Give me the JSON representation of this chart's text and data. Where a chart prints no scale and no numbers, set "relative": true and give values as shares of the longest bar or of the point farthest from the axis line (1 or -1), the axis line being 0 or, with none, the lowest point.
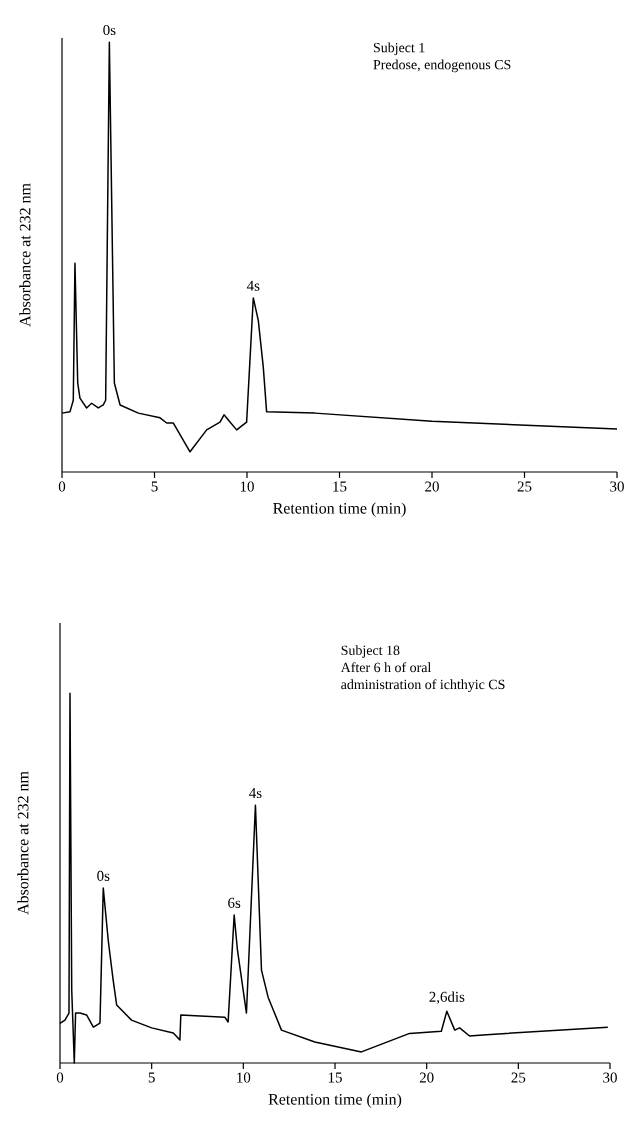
{
  "chart_data": [
    {
      "type": "line",
      "relative": true,
      "color": "#000000",
      "xlim": [
        0,
        30
      ],
      "xticks": [
        0,
        5,
        10,
        15,
        20,
        25,
        30
      ],
      "xlabel": "Retention time (min)",
      "ylabel": "Absorbance at 232 nm",
      "x": [
        0,
        0.43,
        0.61,
        0.7,
        0.85,
        0.97,
        1.33,
        1.6,
        1.96,
        2.23,
        2.36,
        2.56,
        2.83,
        3.14,
        4.13,
        5.3,
        5.66,
        6.02,
        6.92,
        7.82,
        8.54,
        8.76,
        8.99,
        9.44,
        9.98,
        10.34,
        10.61,
        10.88,
        11.06,
        13.68,
        20,
        30
      ],
      "values": [
        0.137,
        0.14,
        0.167,
        0.486,
        0.207,
        0.172,
        0.149,
        0.16,
        0.149,
        0.156,
        0.167,
        1.0,
        0.207,
        0.156,
        0.137,
        0.126,
        0.114,
        0.114,
        0.047,
        0.098,
        0.116,
        0.133,
        0.121,
        0.098,
        0.116,
        0.405,
        0.353,
        0.244,
        0.14,
        0.137,
        0.118,
        0.1
      ],
      "annotations": [
        "Subject 1",
        "Predose, endogenous CS",
        {
          "text": "0s",
          "x": 2.56,
          "y": 1.0
        },
        {
          "text": "4s",
          "x": 10.34,
          "y": 0.405
        }
      ]
    },
    {
      "type": "line",
      "relative": true,
      "color": "#000000",
      "xlim": [
        0,
        30
      ],
      "xticks": [
        0,
        5,
        10,
        15,
        20,
        25,
        30
      ],
      "xlabel": "Retention time (min)",
      "ylabel": "Absorbance at 232 nm",
      "x": [
        0,
        0.27,
        0.49,
        0.545,
        0.64,
        0.78,
        0.85,
        1.09,
        1.45,
        1.82,
        2.18,
        2.36,
        2.63,
        2.9,
        3.09,
        3.9,
        5.0,
        6.18,
        6.54,
        6.59,
        8.99,
        9.17,
        9.5,
        9.68,
        10.17,
        10.66,
        10.99,
        11.35,
        12.08,
        13.9,
        16.44,
        19.07,
        20.8,
        21.1,
        21.53,
        21.8,
        22.34,
        23.07,
        29.88
      ],
      "values": [
        0.107,
        0.116,
        0.135,
        1.0,
        0.197,
        0,
        0.135,
        0.135,
        0.13,
        0.097,
        0.108,
        0.473,
        0.332,
        0.224,
        0.157,
        0.116,
        0.095,
        0.081,
        0.062,
        0.13,
        0.124,
        0.111,
        0.4,
        0.305,
        0.135,
        0.697,
        0.251,
        0.178,
        0.089,
        0.057,
        0.03,
        0.08,
        0.086,
        0.14,
        0.089,
        0.095,
        0.073,
        0.076,
        0.097
      ],
      "annotations": [
        "Subject 18",
        "After 6 h of oral",
        "administration of ichthyic CS",
        {
          "text": "0s",
          "x": 2.36,
          "y": 0.473
        },
        {
          "text": "6s",
          "x": 9.5,
          "y": 0.4
        },
        {
          "text": "4s",
          "x": 10.66,
          "y": 0.697
        },
        {
          "text": "2,6dis",
          "x": 21.1,
          "y": 0.14
        }
      ]
    }
  ]
}
